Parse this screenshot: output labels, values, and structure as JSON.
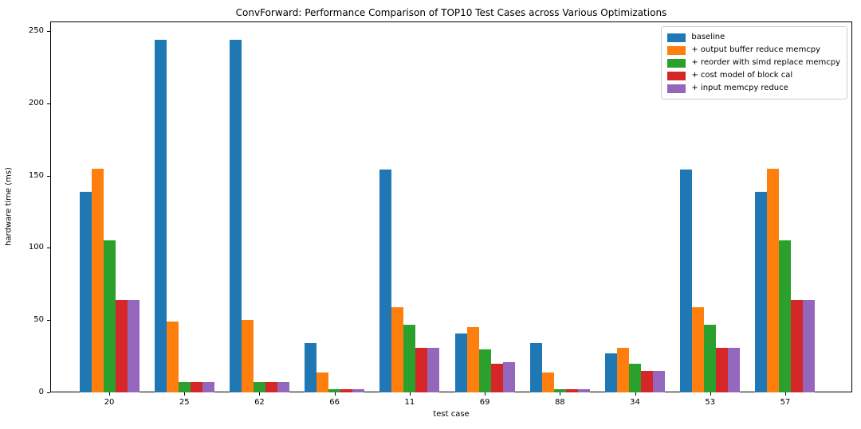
{
  "chart_data": {
    "type": "bar",
    "title": "ConvForward: Performance Comparison of TOP10 Test Cases across Various Optimizations",
    "xlabel": "test case",
    "ylabel": "hardware time (ms)",
    "categories": [
      "20",
      "25",
      "62",
      "66",
      "11",
      "69",
      "88",
      "34",
      "53",
      "57"
    ],
    "series": [
      {
        "name": "baseline",
        "color": "#1f77b4",
        "values": [
          139,
          244,
          244,
          34,
          154,
          41,
          34,
          27,
          154,
          139
        ]
      },
      {
        "name": "+ output buffer reduce memcpy",
        "color": "#ff7f0e",
        "values": [
          155,
          49,
          50,
          14,
          59,
          45,
          14,
          31,
          59,
          155
        ]
      },
      {
        "name": "+ reorder with simd replace memcpy",
        "color": "#2ca02c",
        "values": [
          105,
          7,
          7,
          2,
          47,
          30,
          2,
          20,
          47,
          105
        ]
      },
      {
        "name": "+ cost model of block cal",
        "color": "#d62728",
        "values": [
          64,
          7,
          7,
          2,
          31,
          20,
          2,
          15,
          31,
          64
        ]
      },
      {
        "name": "+ input memcpy reduce",
        "color": "#9467bd",
        "values": [
          64,
          7,
          7,
          2,
          31,
          21,
          2,
          15,
          31,
          64
        ]
      }
    ],
    "yticks": [
      0,
      50,
      100,
      150,
      200,
      250
    ],
    "ylim": [
      0,
      256
    ],
    "grid": false,
    "legend_position": "upper right"
  }
}
